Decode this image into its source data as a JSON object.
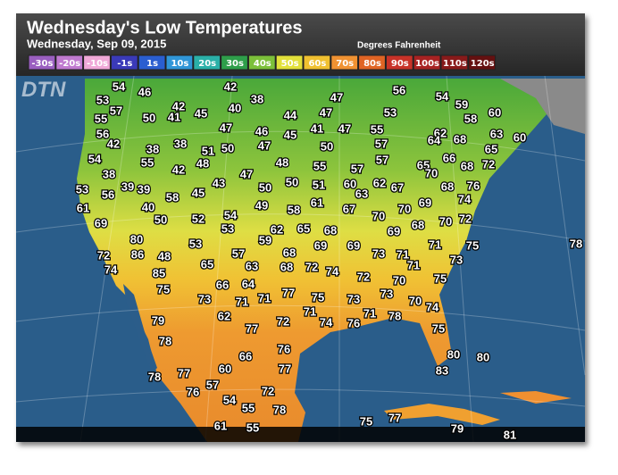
{
  "header": {
    "title": "Wednesday's Low Temperatures",
    "date": "Wednesday, Sep 09, 2015",
    "units": "Degrees Fahrenheit"
  },
  "logo": "DTN",
  "legend": [
    {
      "label": "-30s",
      "color": "#9a5fc0"
    },
    {
      "label": "-20s",
      "color": "#c07ad0"
    },
    {
      "label": "-10s",
      "color": "#f0a8d8"
    },
    {
      "label": "-1s",
      "color": "#3a3ab8"
    },
    {
      "label": "1s",
      "color": "#2a5ed0"
    },
    {
      "label": "10s",
      "color": "#3096d8"
    },
    {
      "label": "20s",
      "color": "#2ab0a8"
    },
    {
      "label": "30s",
      "color": "#2e9e4a"
    },
    {
      "label": "40s",
      "color": "#7cc03a"
    },
    {
      "label": "50s",
      "color": "#e2e03a"
    },
    {
      "label": "60s",
      "color": "#f0c030"
    },
    {
      "label": "70s",
      "color": "#f09232"
    },
    {
      "label": "80s",
      "color": "#e06424"
    },
    {
      "label": "90s",
      "color": "#c83228"
    },
    {
      "label": "100s",
      "color": "#a82222"
    },
    {
      "label": "110s",
      "color": "#881a1a"
    },
    {
      "label": "120s",
      "color": "#641010"
    }
  ],
  "temperatures": [
    54,
    46,
    42,
    56,
    54,
    53,
    38,
    47,
    59,
    57,
    42,
    40,
    47,
    53,
    60,
    55,
    50,
    41,
    45,
    44,
    58,
    56,
    47,
    46,
    41,
    47,
    55,
    62,
    68,
    63,
    60,
    64,
    42,
    38,
    47,
    45,
    50,
    57,
    65,
    38,
    51,
    50,
    54,
    55,
    48,
    47,
    48,
    57,
    66,
    72,
    68,
    65,
    70,
    42,
    55,
    57,
    38,
    43,
    50,
    50,
    51,
    60,
    62,
    67,
    68,
    76,
    53,
    56,
    39,
    39,
    58,
    45,
    63,
    74,
    61,
    40,
    49,
    58,
    61,
    67,
    69,
    70,
    70,
    69,
    50,
    52,
    54,
    53,
    62,
    65,
    68,
    68,
    70,
    72,
    69,
    59,
    80,
    53,
    68,
    69,
    69,
    71,
    75,
    78,
    72,
    86,
    48,
    57,
    73,
    71,
    73,
    74,
    65,
    63,
    68,
    72,
    74,
    72,
    71,
    85,
    66,
    64,
    70,
    75,
    75,
    77,
    75,
    73,
    73,
    73,
    71,
    71,
    71,
    70,
    74,
    62,
    72,
    71,
    78,
    76,
    74,
    79,
    77,
    75,
    78,
    76,
    80,
    80,
    66,
    77,
    60,
    83,
    78,
    77,
    57,
    76,
    72,
    54,
    55,
    78,
    61,
    55,
    75,
    77,
    79,
    81
  ]
}
